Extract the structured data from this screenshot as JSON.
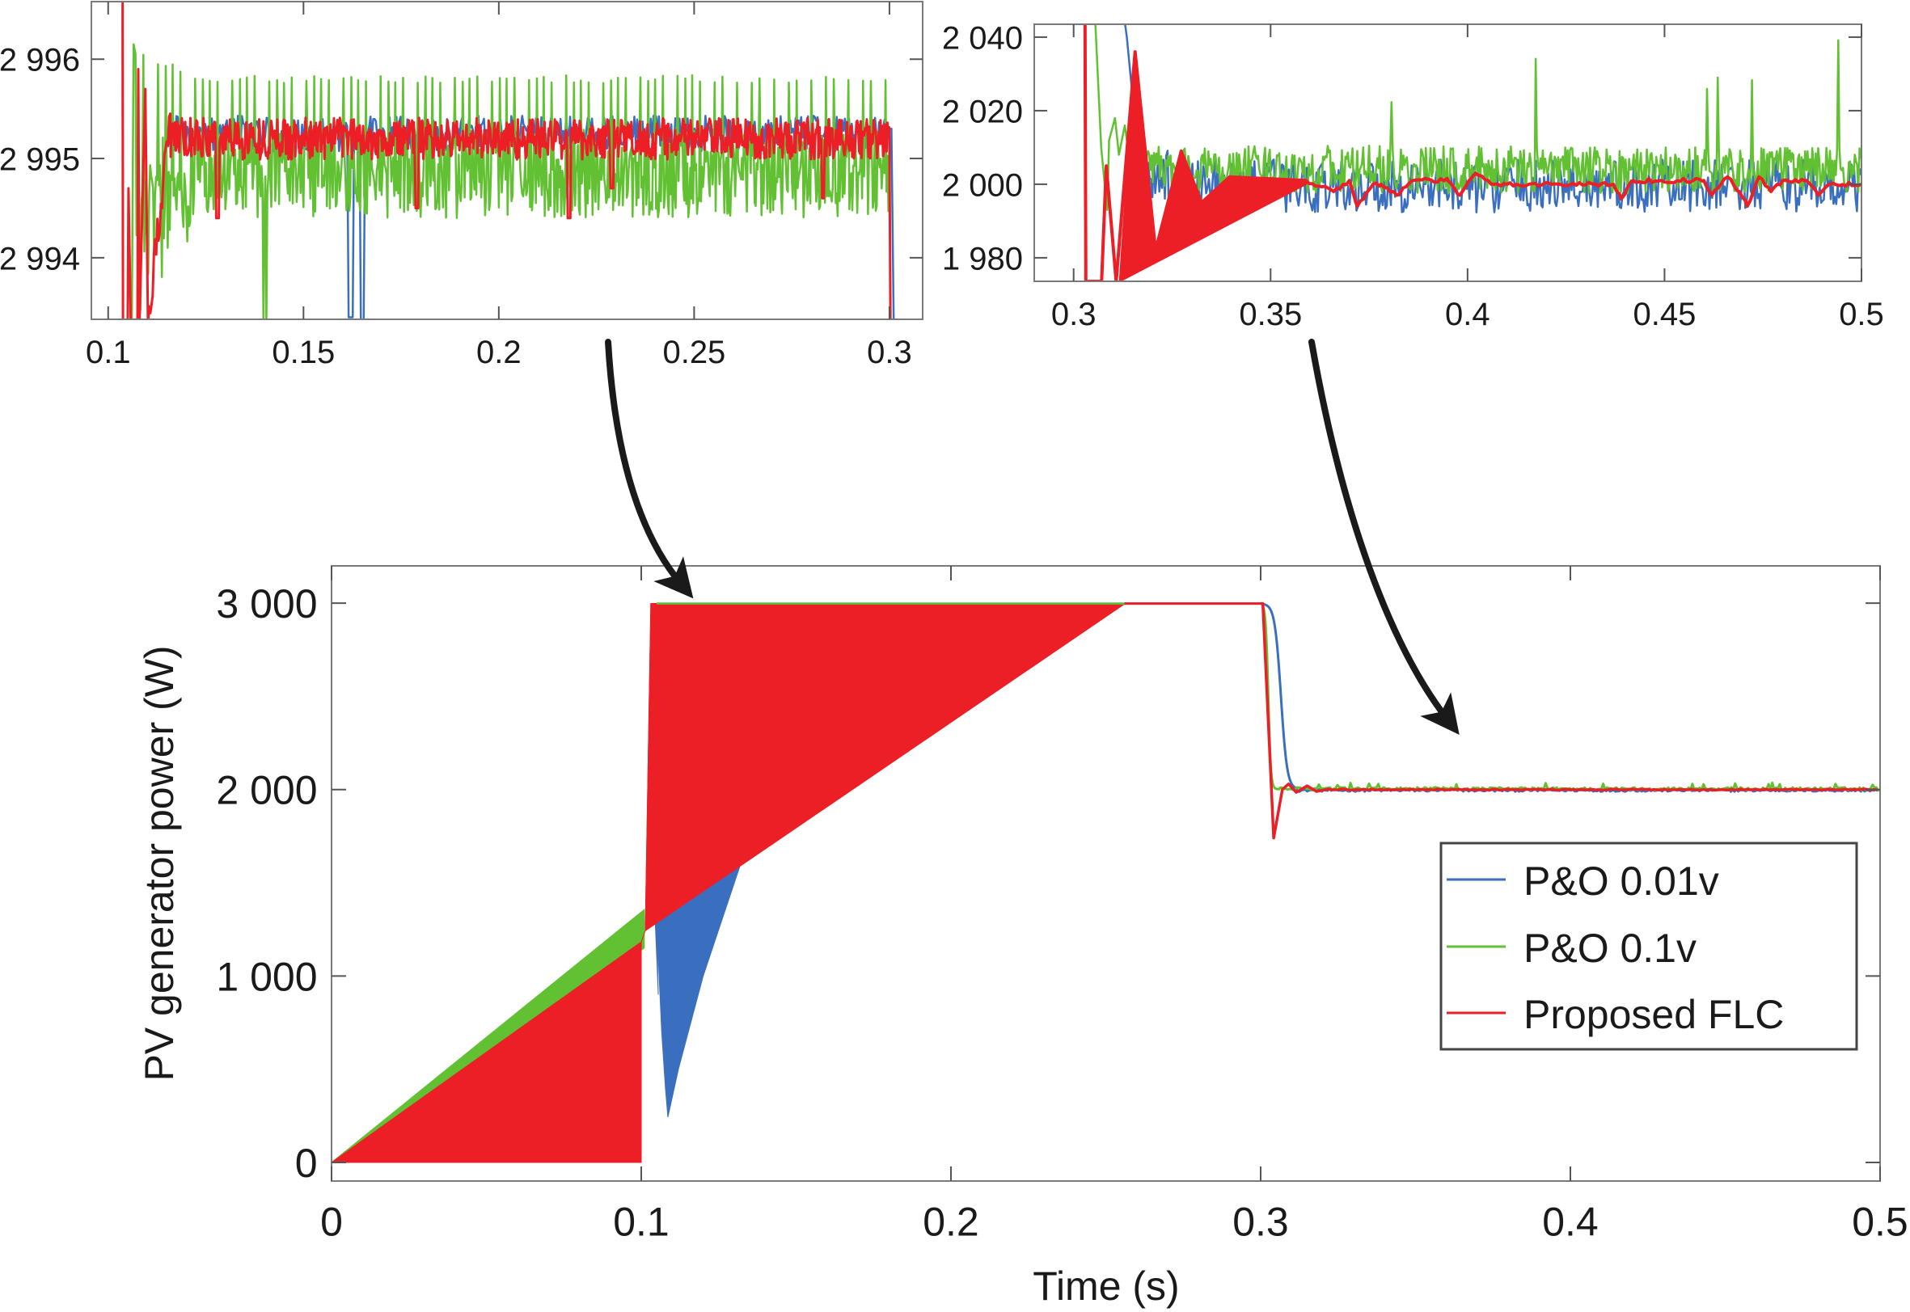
{
  "chart_data": [
    {
      "id": "main",
      "type": "line",
      "title": "",
      "xlabel": "Time (s)",
      "ylabel": "PV generator power (W)",
      "xlim": [
        0,
        0.5
      ],
      "ylim": [
        -100,
        3200
      ],
      "xticks": [
        0,
        0.1,
        0.2,
        0.3,
        0.4,
        0.5
      ],
      "xtick_labels": [
        "0",
        "0.1",
        "0.2",
        "0.3",
        "0.4",
        "0.5"
      ],
      "yticks": [
        0,
        1000,
        2000,
        3000
      ],
      "ytick_labels": [
        "0",
        "1 000",
        "2 000",
        "3 000"
      ],
      "grid": false,
      "legend": {
        "placement": "lower-right",
        "entries": [
          "P&O 0.01v",
          "P&O 0.1v",
          "Proposed FLC"
        ]
      },
      "series": [
        {
          "name": "P&O 0.01v",
          "color": "#3a6fbf",
          "description": "Ramps 0→~1300 W by t=0.1 s (hidden under red), dips to ~240 W at 0.109 s, oscillating band up to ~3000 W, steady ~2995 W until 0.3 s, drops to ~2000 W by 0.311 s",
          "envelope_points": [
            [
              0.105,
              1280
            ],
            [
              0.1086,
              243
            ],
            [
              0.132,
              1596
            ]
          ],
          "steady_levels": [
            [
              0.13,
              0.3,
              2995
            ],
            [
              0.311,
              0.5,
              2000
            ]
          ]
        },
        {
          "name": "P&O 0.1v",
          "color": "#62c132",
          "description": "Ramp band 0→~1360 W by t=0.101 s, then ~2995 W, drops to ~2000 W at ~0.306 s",
          "ramp_upper": [
            [
              0,
              0
            ],
            [
              0.101,
              1357
            ]
          ],
          "steady_levels": [
            [
              0.11,
              0.3,
              2995
            ],
            [
              0.306,
              0.5,
              2002
            ]
          ]
        },
        {
          "name": "Proposed FLC",
          "color": "#ec1f27",
          "description": "Oscillating band between 0 and linear ramp up to 1183 W for t<0.1 s; after 0.103 s band between 3000 W and a rising line reaching 3000 W at 0.256 s; steady 3000 W until 0.3 s; drops with undershoot to ~1740 W at 0.304 s, settles at 2000 W",
          "ramp_upper": [
            [
              0,
              0
            ],
            [
              0.1,
              1183
            ]
          ],
          "lower_envelope": [
            [
              0.1013,
              1243
            ],
            [
              0.2564,
              3000
            ]
          ],
          "upper_level": 2998,
          "transient": [
            [
              0.3,
              2998
            ],
            [
              0.3007,
              2998
            ],
            [
              0.3042,
              1740
            ],
            [
              0.307,
              2000
            ],
            [
              0.309,
              2030
            ],
            [
              0.3115,
              1985
            ],
            [
              0.315,
              2020
            ],
            [
              0.318,
              1990
            ],
            [
              0.322,
              2003
            ],
            [
              0.5,
              2000
            ]
          ]
        }
      ]
    },
    {
      "id": "inset-left",
      "type": "line",
      "title": "",
      "xlabel": "",
      "ylabel": "",
      "xlim": [
        0.0957,
        0.3085
      ],
      "ylim": [
        2993.38,
        2996.58
      ],
      "xticks": [
        0.1,
        0.15,
        0.2,
        0.25,
        0.3
      ],
      "xtick_labels": [
        "0.1",
        "0.15",
        "0.2",
        "0.25",
        "0.3"
      ],
      "yticks": [
        2994,
        2995,
        2996
      ],
      "ytick_labels": [
        "2 994",
        "2 995",
        "2 996"
      ],
      "grid": false,
      "series": [
        {
          "name": "P&O 0.01v",
          "color": "#3a6fbf",
          "mean": 2995.25,
          "amplitude": 0.12,
          "dips": [
            [
              0.162,
              2993.4
            ],
            [
              0.165,
              2993.3
            ]
          ]
        },
        {
          "name": "P&O 0.1v",
          "color": "#62c132",
          "mean": 2994.95,
          "spike_peak": 2995.8,
          "low": 2994.4,
          "period_s": 0.0019
        },
        {
          "name": "Proposed FLC",
          "color": "#ec1f27",
          "mean": 2995.2,
          "amplitude": 0.15,
          "dips": [
            [
              0.128,
              2994.4
            ],
            [
              0.179,
              2994.5
            ],
            [
              0.218,
              2994.4
            ],
            [
              0.229,
              2994.7
            ],
            [
              0.283,
              2994.6
            ]
          ]
        }
      ]
    },
    {
      "id": "inset-right",
      "type": "line",
      "title": "",
      "xlabel": "",
      "ylabel": "",
      "xlim": [
        0.29,
        0.5
      ],
      "ylim": [
        1973.6,
        2043.5
      ],
      "xticks": [
        0.3,
        0.35,
        0.4,
        0.45,
        0.5
      ],
      "xtick_labels": [
        "0.3",
        "0.35",
        "0.4",
        "0.45",
        "0.5"
      ],
      "yticks": [
        1980,
        2000,
        2020,
        2040
      ],
      "ytick_labels": [
        "1 980",
        "2 000",
        "2 020",
        "2 040"
      ],
      "grid": false,
      "series": [
        {
          "name": "P&O 0.01v",
          "color": "#3a6fbf",
          "mean": 1999.5,
          "amplitude": 6
        },
        {
          "name": "P&O 0.1v",
          "color": "#62c132",
          "mean": 2004,
          "amplitude": 5,
          "spike_peak": 2040
        },
        {
          "name": "Proposed FLC",
          "color": "#ec1f27",
          "points": [
            [
              0.3029,
              2043.5
            ],
            [
              0.3031,
              1973.6
            ],
            [
              0.3071,
              1973.6
            ],
            [
              0.3083,
              2005
            ],
            [
              0.3108,
              1973.6
            ],
            [
              0.3156,
              2036
            ],
            [
              0.3208,
              1982
            ],
            [
              0.3273,
              2009
            ],
            [
              0.3325,
              1995
            ],
            [
              0.3396,
              2002
            ],
            [
              0.359,
              2001
            ],
            [
              0.366,
              1998
            ],
            [
              0.37,
              2001
            ],
            [
              0.372,
              1994
            ],
            [
              0.376,
              2000
            ],
            [
              0.378,
              2000
            ],
            [
              0.382,
              1997
            ],
            [
              0.386,
              2001
            ],
            [
              0.395,
              2001
            ],
            [
              0.398,
              1997
            ],
            [
              0.402,
              2003
            ],
            [
              0.406,
              2000
            ],
            [
              0.437,
              2000
            ],
            [
              0.439,
              1996
            ],
            [
              0.442,
              2001
            ],
            [
              0.46,
              2001
            ],
            [
              0.462,
              1997
            ],
            [
              0.466,
              2002
            ],
            [
              0.469,
              1998
            ],
            [
              0.471,
              1994
            ],
            [
              0.474,
              2002
            ],
            [
              0.477,
              1998
            ],
            [
              0.48,
              2001
            ],
            [
              0.486,
              2001
            ],
            [
              0.489,
              1997
            ],
            [
              0.492,
              2000
            ],
            [
              0.5,
              2000
            ]
          ],
          "band_lower": [
            [
              0.3117,
              1973.6
            ],
            [
              0.359,
              2000
            ]
          ]
        }
      ]
    }
  ],
  "annotations": {
    "arrow_left": "zoom from 0.1–0.3 s inset to main plot near 0.1 s, 3000 W",
    "arrow_right": "zoom from 0.3–0.5 s inset to main plot near 0.37 s, 2000 W"
  }
}
